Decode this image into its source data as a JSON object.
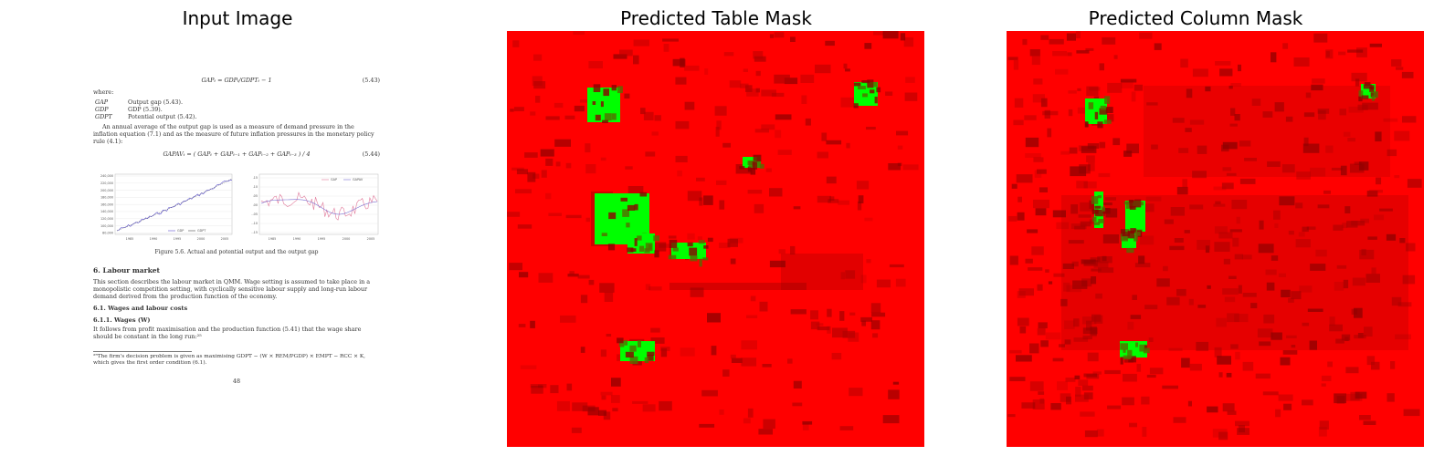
{
  "panels": [
    {
      "title": "Input Image"
    },
    {
      "title": "Predicted Table Mask"
    },
    {
      "title": "Predicted Column Mask"
    }
  ],
  "colors": {
    "mask_background": "#ff0000",
    "mask_positive": "#00ff00",
    "mask_dark": "#8b0000",
    "mask_dark2": "#b00000",
    "mask_mixed": "#556b00"
  },
  "document": {
    "eq1": "GAPₜ = GDPₜ/GDPTₜ − 1",
    "eq1_num": "(5.43)",
    "where": "where:",
    "defs": [
      {
        "sym": "GAP",
        "text": "Output gap (5.43)."
      },
      {
        "sym": "GDP",
        "text": "GDP (5.39)."
      },
      {
        "sym": "GDPT",
        "text": "Potential output (5.42)."
      }
    ],
    "para1": "An annual average of the output gap is used as a measure of demand pressure in the inflation equation (7.1) and as the measure of future inflation pressures in the monetary policy rule (4.1):",
    "eq2": "GAPAVₜ = ( GAPₜ + GAPₜ₋₁ + GAPₜ₋₂ + GAPₜ₋₃ ) / 4",
    "eq2_num": "(5.44)",
    "left_chart_yticks": [
      "240,000",
      "220,000",
      "200,000",
      "180,000",
      "160,000",
      "140,000",
      "120,000",
      "100,000",
      "80,000"
    ],
    "left_chart_xticks": [
      "1985",
      "1990",
      "1995",
      "2000",
      "2005"
    ],
    "left_chart_legend": [
      "GDP",
      "GDPT"
    ],
    "right_chart_yticks": [
      ".15",
      ".10",
      ".05",
      ".00",
      "-.05",
      "-.10",
      "-.15"
    ],
    "right_chart_xticks": [
      "1985",
      "1990",
      "1995",
      "2000",
      "2005"
    ],
    "right_chart_legend": [
      "GAP",
      "GAPAV"
    ],
    "caption": "Figure 5.6. Actual and potential output and the output gap",
    "section": "6. Labour market",
    "para2": "This section describes the labour market in QMM. Wage setting is assumed to take place in a monopolistic competition setting, with cyclically sensitive labour supply and long-run labour demand derived from the production function of the economy.",
    "sub1": "6.1. Wages and labour costs",
    "sub2": "6.1.1. Wages (W)",
    "para3": "It follows from profit maximisation and the production function (5.41) that the wage share should be constant in the long run:²⁵",
    "footnote": "²⁵The firm's decision problem is given as maximising GDPT − (W × REM/PGDP) × EMPT − RCC × K, which gives the first order condition (6.1).",
    "page_number": "48"
  }
}
